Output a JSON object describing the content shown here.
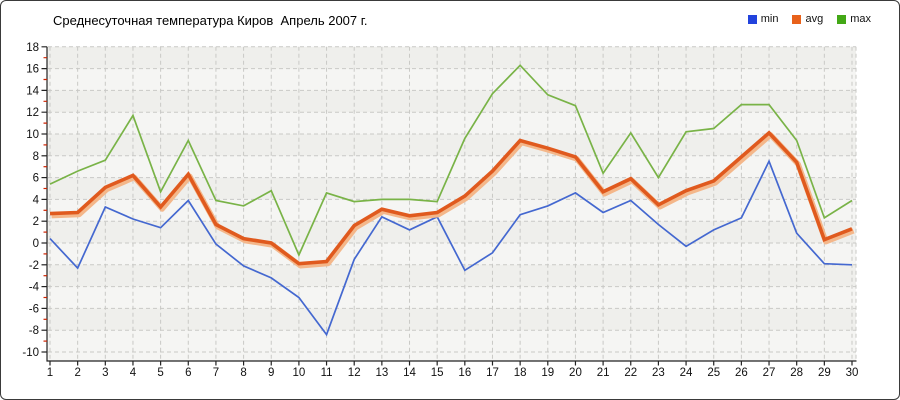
{
  "title": "Среднесуточная температура Киров  Апрель 2007 г.",
  "legend": [
    {
      "label": "min",
      "color": "#2243dd"
    },
    {
      "label": "avg",
      "color": "#e8611a"
    },
    {
      "label": "max",
      "color": "#43a816"
    }
  ],
  "colors": {
    "frame_border": "#3a3a3a",
    "plot_bg": "#f5f5f3",
    "plot_band": "#efefec",
    "grid": "#c9c9c6",
    "axis": "#222222",
    "minor_tick": "#cc2200",
    "tick_label": "#111111",
    "min_line": "#4468d0",
    "avg_line": "#e05a1e",
    "avg_glow": "#f4b78a",
    "max_line": "#79b347"
  },
  "chart_data": {
    "type": "line",
    "title": "Среднесуточная температура Киров  Апрель 2007 г.",
    "xlabel": "",
    "ylabel": "",
    "x": [
      1,
      2,
      3,
      4,
      5,
      6,
      7,
      8,
      9,
      10,
      11,
      12,
      13,
      14,
      15,
      16,
      17,
      18,
      19,
      20,
      21,
      22,
      23,
      24,
      25,
      26,
      27,
      28,
      29,
      30
    ],
    "xticks": [
      1,
      2,
      3,
      4,
      5,
      6,
      7,
      8,
      9,
      10,
      11,
      12,
      13,
      14,
      15,
      16,
      17,
      18,
      19,
      20,
      21,
      22,
      23,
      24,
      25,
      26,
      27,
      28,
      29,
      30
    ],
    "yticks": [
      18,
      16,
      14,
      12,
      10,
      8,
      6,
      4,
      2,
      0,
      -2,
      -4,
      -6,
      -8,
      -10
    ],
    "ylim": [
      -10,
      18
    ],
    "grid": true,
    "legend_position": "top-right",
    "series": [
      {
        "name": "min",
        "color": "#4468d0",
        "values": [
          0.4,
          -2.3,
          3.3,
          2.2,
          1.4,
          3.9,
          -0.1,
          -2.1,
          -3.2,
          -5.0,
          -8.4,
          -1.5,
          2.4,
          1.2,
          2.4,
          -2.5,
          -0.9,
          2.6,
          3.4,
          4.6,
          2.8,
          3.9,
          1.7,
          -0.3,
          1.2,
          2.3,
          7.5,
          0.9,
          -1.9,
          -2.0
        ]
      },
      {
        "name": "avg",
        "color": "#e05a1e",
        "values": [
          2.7,
          2.8,
          5.1,
          6.2,
          3.3,
          6.3,
          1.7,
          0.4,
          0.0,
          -1.9,
          -1.7,
          1.6,
          3.1,
          2.5,
          2.8,
          4.3,
          6.6,
          9.4,
          8.7,
          7.9,
          4.7,
          5.9,
          3.5,
          4.8,
          5.7,
          7.9,
          10.1,
          7.4,
          0.3,
          1.3
        ]
      },
      {
        "name": "max",
        "color": "#79b347",
        "values": [
          5.4,
          6.6,
          7.6,
          11.7,
          4.7,
          9.4,
          3.9,
          3.4,
          4.8,
          -1.1,
          4.6,
          3.8,
          4.0,
          4.0,
          3.8,
          9.6,
          13.7,
          16.3,
          13.6,
          12.6,
          6.4,
          10.1,
          6.0,
          10.2,
          10.5,
          12.7,
          12.7,
          9.4,
          2.3,
          3.9
        ]
      }
    ]
  }
}
